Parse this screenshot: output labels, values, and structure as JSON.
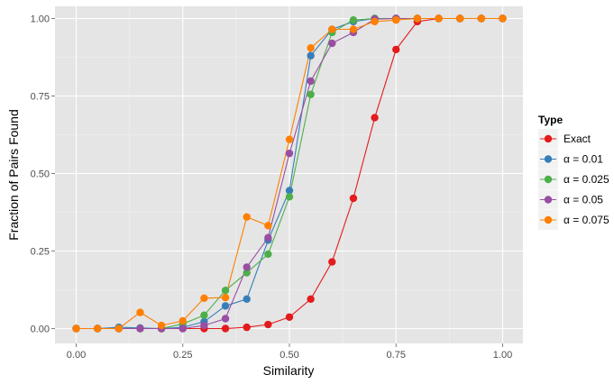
{
  "chart_data": {
    "type": "line",
    "xlabel": "Similarity",
    "ylabel": "Fraction of Pairs Found",
    "xlim": [
      0,
      1
    ],
    "ylim": [
      0,
      1
    ],
    "x_ticks": [
      "0.00",
      "0.25",
      "0.50",
      "0.75",
      "1.00"
    ],
    "y_ticks": [
      "0.00",
      "0.25",
      "0.50",
      "0.75",
      "1.00"
    ],
    "grid": true,
    "legend": {
      "title": "Type",
      "position": "right"
    },
    "series": [
      {
        "name": "Exact",
        "color": "#e41a1c",
        "x": [
          0,
          0.05,
          0.1,
          0.15,
          0.2,
          0.25,
          0.3,
          0.35,
          0.4,
          0.45,
          0.5,
          0.55,
          0.6,
          0.65,
          0.7,
          0.75,
          0.8,
          0.85,
          0.9,
          0.95,
          1.0
        ],
        "y": [
          0,
          0,
          0,
          0,
          0,
          0,
          0,
          0,
          0.004,
          0.013,
          0.037,
          0.095,
          0.215,
          0.42,
          0.68,
          0.9,
          0.99,
          1.0,
          1.0,
          1.0,
          1.0
        ]
      },
      {
        "name": "α = 0.01",
        "color": "#377eb8",
        "x": [
          0,
          0.05,
          0.1,
          0.15,
          0.2,
          0.25,
          0.3,
          0.35,
          0.4,
          0.45,
          0.5,
          0.55,
          0.6,
          0.65,
          0.7,
          0.75,
          0.8,
          0.85,
          0.9,
          0.95,
          1.0
        ],
        "y": [
          0,
          0,
          0.004,
          0.002,
          0,
          0.004,
          0.022,
          0.073,
          0.095,
          0.285,
          0.445,
          0.88,
          0.965,
          0.99,
          1.0,
          1.0,
          1.0,
          1.0,
          1.0,
          1.0,
          1.0
        ]
      },
      {
        "name": "α = 0.025",
        "color": "#4daf4a",
        "x": [
          0,
          0.05,
          0.1,
          0.15,
          0.2,
          0.25,
          0.3,
          0.35,
          0.4,
          0.45,
          0.5,
          0.55,
          0.6,
          0.65,
          0.7,
          0.75,
          0.8,
          0.85,
          0.9,
          0.95,
          1.0
        ],
        "y": [
          0,
          0,
          0,
          0,
          0,
          0.015,
          0.043,
          0.123,
          0.18,
          0.24,
          0.425,
          0.755,
          0.955,
          0.995,
          1.0,
          1.0,
          1.0,
          1.0,
          1.0,
          1.0,
          1.0
        ]
      },
      {
        "name": "α = 0.05",
        "color": "#984ea3",
        "x": [
          0,
          0.05,
          0.1,
          0.15,
          0.2,
          0.25,
          0.3,
          0.35,
          0.4,
          0.45,
          0.5,
          0.55,
          0.6,
          0.65,
          0.7,
          0.75,
          0.8,
          0.85,
          0.9,
          0.95,
          1.0
        ],
        "y": [
          0,
          0,
          0,
          0,
          0,
          0,
          0.01,
          0.032,
          0.198,
          0.293,
          0.565,
          0.798,
          0.92,
          0.955,
          0.998,
          1.0,
          1.0,
          1.0,
          1.0,
          1.0,
          1.0
        ]
      },
      {
        "name": "α = 0.075",
        "color": "#ff7f00",
        "x": [
          0,
          0.05,
          0.1,
          0.15,
          0.2,
          0.25,
          0.3,
          0.35,
          0.4,
          0.45,
          0.5,
          0.55,
          0.6,
          0.65,
          0.7,
          0.75,
          0.8,
          0.85,
          0.9,
          0.95,
          1.0
        ],
        "y": [
          0,
          0,
          0,
          0.052,
          0.01,
          0.025,
          0.098,
          0.1,
          0.36,
          0.332,
          0.61,
          0.905,
          0.965,
          0.965,
          0.99,
          0.995,
          1.0,
          1.0,
          1.0,
          1.0,
          1.0
        ]
      }
    ]
  }
}
